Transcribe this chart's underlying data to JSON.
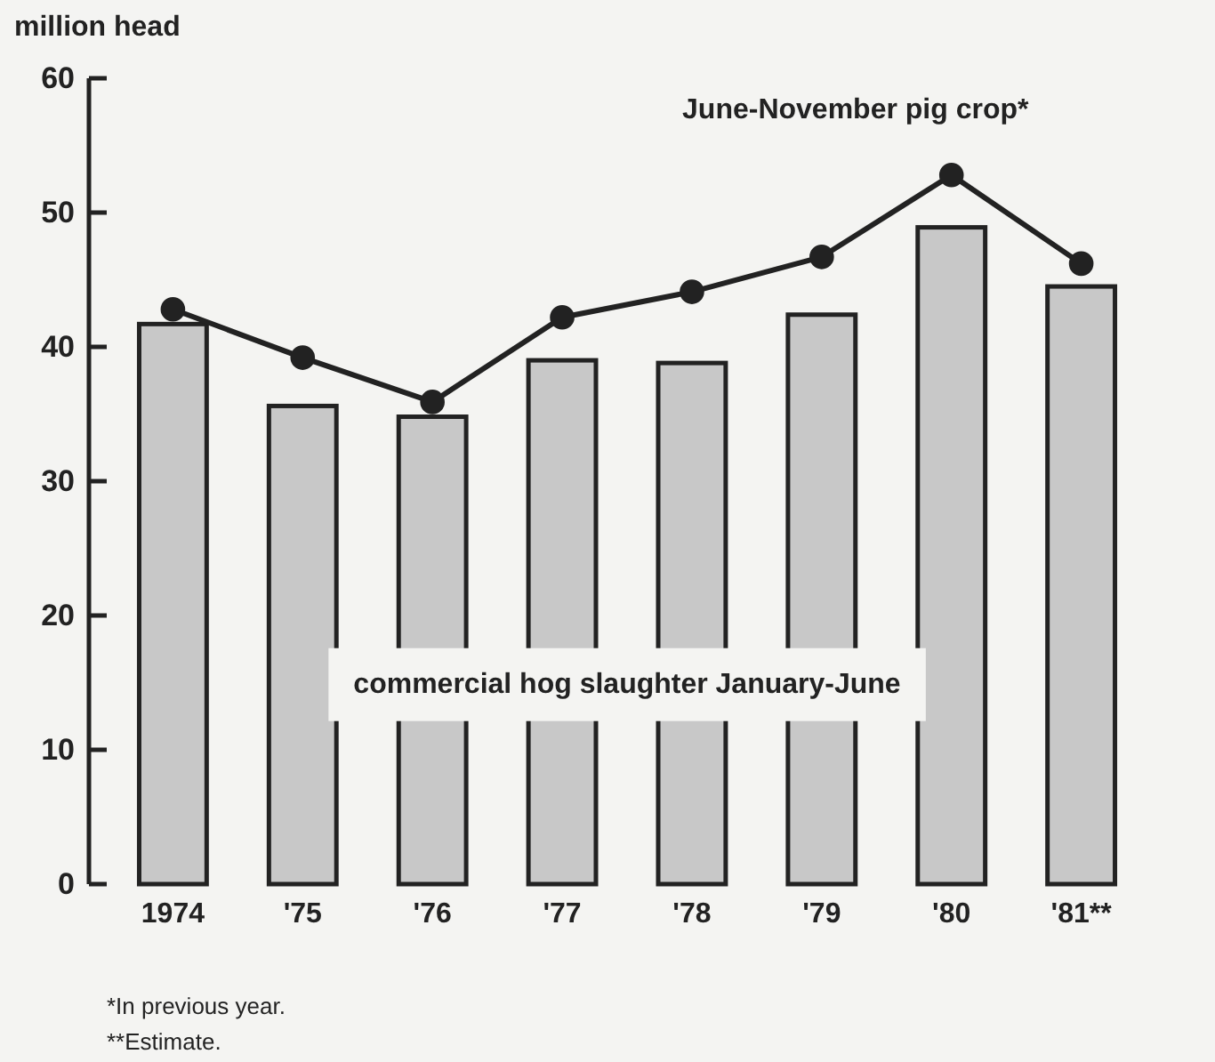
{
  "chart_data": {
    "type": "bar",
    "ylabel": "million head",
    "categories": [
      "1974",
      "'75",
      "'76",
      "'77",
      "'78",
      "'79",
      "'80",
      "'81**"
    ],
    "series": [
      {
        "name": "commercial hog slaughter January-June",
        "color": "#c8c8c8",
        "values": [
          41.7,
          35.6,
          34.8,
          39.0,
          38.8,
          42.4,
          48.9,
          44.5
        ]
      },
      {
        "name": "June-November pig crop*",
        "type": "line",
        "color": "#222222",
        "marker": "circle",
        "values": [
          42.8,
          39.2,
          35.9,
          42.2,
          44.1,
          46.7,
          52.8,
          46.2
        ]
      }
    ],
    "ylim": [
      0,
      60
    ],
    "yticks": [
      0,
      10,
      20,
      30,
      40,
      50,
      60
    ],
    "grid": false,
    "annotations": [
      "*In previous year.",
      "**Estimate."
    ]
  }
}
